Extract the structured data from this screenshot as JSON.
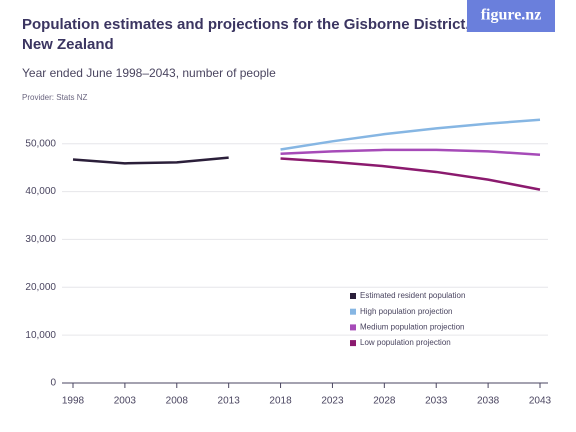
{
  "chart_data": {
    "type": "line",
    "title": "Population estimates and projections for the Gisborne District, New Zealand",
    "title_lines": [
      "Population estimates and projections for the Gisborne District,",
      "New Zealand"
    ],
    "subtitle": "Year ended June 1998–2043, number of people",
    "provider": "Provider: Stats NZ",
    "logo": "figure.nz",
    "x": [
      1998,
      2003,
      2008,
      2013,
      2018,
      2023,
      2028,
      2033,
      2038,
      2043
    ],
    "xlim": [
      1998,
      2043
    ],
    "xticks": [
      1998,
      2003,
      2008,
      2013,
      2018,
      2023,
      2028,
      2033,
      2038,
      2043
    ],
    "ylim": [
      0,
      56000
    ],
    "yticks": [
      0,
      {
        "value": 10000,
        "label": "10,000"
      },
      {
        "value": 20000,
        "label": "20,000"
      },
      {
        "value": 30000,
        "label": "30,000"
      },
      {
        "value": 40000,
        "label": "40,000"
      },
      {
        "value": 50000,
        "label": "50,000"
      }
    ],
    "grid": true,
    "legend": "bottom-right",
    "series": [
      {
        "name": "Estimated resident population",
        "color": "#2b1f3a",
        "values": [
          46700,
          45900,
          46100,
          47100,
          null,
          null,
          null,
          null,
          null,
          null
        ]
      },
      {
        "name": "High population projection",
        "color": "#86b6e3",
        "values": [
          null,
          null,
          null,
          null,
          48800,
          50500,
          52000,
          53200,
          54200,
          55000
        ]
      },
      {
        "name": "Medium population projection",
        "color": "#a64bb8",
        "values": [
          null,
          null,
          null,
          null,
          47900,
          48400,
          48700,
          48700,
          48400,
          47700
        ]
      },
      {
        "name": "Low population projection",
        "color": "#8b1a6e",
        "values": [
          null,
          null,
          null,
          null,
          46900,
          46200,
          45300,
          44100,
          42500,
          40400
        ]
      }
    ]
  }
}
